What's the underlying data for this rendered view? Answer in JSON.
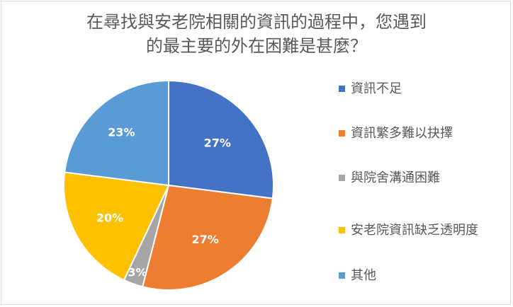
{
  "chart_data": {
    "type": "pie",
    "title_lines": [
      "在尋找與安老院相關的資訊的過程中，您遇到",
      "的最主要的外在困難是甚麼？"
    ],
    "categories": [
      "資訊不足",
      "資訊繁多難以抉擇",
      "與院舍溝通困難",
      "安老院資訊缺乏透明度",
      "其他"
    ],
    "values": [
      27,
      27,
      3,
      20,
      23
    ],
    "data_labels": [
      "27%",
      "27%",
      "3%",
      "20%",
      "23%"
    ],
    "colors": [
      "#4472c4",
      "#ed7d31",
      "#a5a5a5",
      "#ffc000",
      "#5b9bd5"
    ],
    "legend_position": "right"
  }
}
